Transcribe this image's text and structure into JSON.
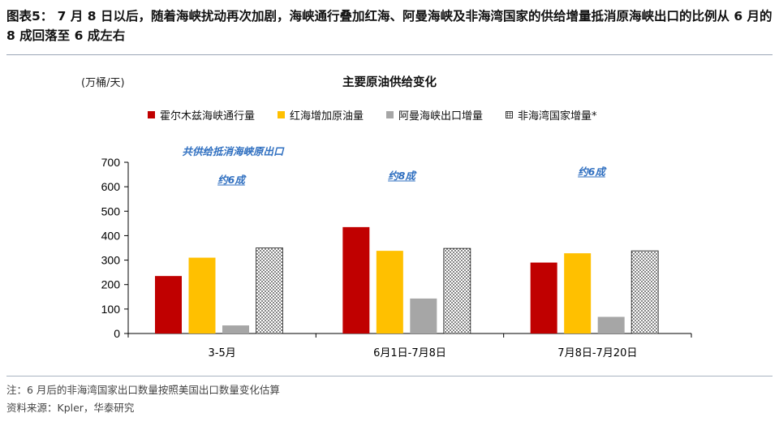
{
  "figure_title": "图表5： 7 月 8 日以后，随着海峡扰动再次加剧，海峡通行叠加红海、阿曼海峡及非海湾国家的供给增量抵消原海峡出口的比例从 6 月的 8 成回落至 6 成左右",
  "colors": {
    "hormuz": "#c00000",
    "red_sea": "#ffc000",
    "oman": "#a6a6a6",
    "non_gulf": "#ffffff",
    "annotation": "#2f6fc0"
  },
  "chart_data": {
    "type": "bar",
    "title": "主要原油供给变化",
    "unit": "(万桶/天)",
    "categories": [
      "3-5月",
      "6月1日-7月8日",
      "7月8日-7月20日"
    ],
    "ylim": [
      0,
      700
    ],
    "yticks": [
      0,
      100,
      200,
      300,
      400,
      500,
      600,
      700
    ],
    "legend_position": "top",
    "grid": false,
    "series": [
      {
        "name": "霍尔木兹海峡通行量",
        "values": [
          235,
          435,
          290
        ]
      },
      {
        "name": "红海增加原油量",
        "values": [
          310,
          338,
          328
        ]
      },
      {
        "name": "阿曼海峡出口增量",
        "values": [
          33,
          143,
          68
        ]
      },
      {
        "name": "非海湾国家增量*",
        "values": [
          350,
          348,
          338
        ]
      }
    ],
    "annotations": [
      {
        "lines": [
          "共供给抵消海峡原出口",
          "约6成"
        ],
        "category": 0
      },
      {
        "lines": [
          "约8成"
        ],
        "category": 1
      },
      {
        "lines": [
          "约6成"
        ],
        "category": 2
      }
    ]
  },
  "footnote": "注：6 月后的非海湾国家出口数量按照美国出口数量变化估算",
  "source": "资料来源：Kpler，华泰研究"
}
